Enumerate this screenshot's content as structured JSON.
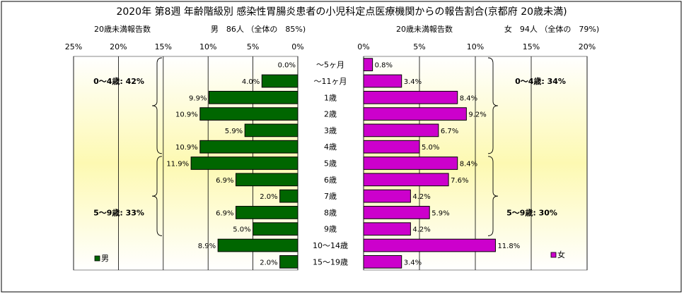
{
  "chart_data": {
    "type": "bar",
    "title": "2020年 第8週 年齢階級別 感染性胃腸炎患者の小児科定点医療機関からの報告割合(京都府 20歳未満)",
    "categories": [
      "～5ヶ月",
      "～11ヶ月",
      "1歳",
      "2歳",
      "3歳",
      "4歳",
      "5歳",
      "6歳",
      "7歳",
      "8歳",
      "9歳",
      "10～14歳",
      "15～19歳"
    ],
    "left_panel": {
      "header_left": "20歳未満報告数",
      "header_right": "男　86人 （全体の　85%)",
      "xticks": [
        "25%",
        "20%",
        "15%",
        "10%",
        "5%",
        "0%"
      ],
      "xlim": [
        0,
        25
      ],
      "legend": "男",
      "color": "#006600",
      "values": [
        0.0,
        4.0,
        9.9,
        10.9,
        5.9,
        10.9,
        11.9,
        6.9,
        2.0,
        6.9,
        5.0,
        8.9,
        2.0
      ],
      "labels": [
        "0.0%",
        "4.0%",
        "9.9%",
        "10.9%",
        "5.9%",
        "10.9%",
        "11.9%",
        "6.9%",
        "2.0%",
        "6.9%",
        "5.0%",
        "8.9%",
        "2.0%"
      ],
      "group1": "0～4歳: 42%",
      "group2": "5～9歳: 33%"
    },
    "right_panel": {
      "header_left": "20歳未満報告数",
      "header_right": "女　94人 （全体の　79%)",
      "xticks": [
        "0%",
        "5%",
        "10%",
        "15%",
        "20%"
      ],
      "xlim": [
        0,
        20
      ],
      "legend": "女",
      "color": "#cc00cc",
      "values": [
        0.8,
        3.4,
        8.4,
        9.2,
        6.7,
        5.0,
        8.4,
        7.6,
        4.2,
        5.9,
        4.2,
        11.8,
        3.4
      ],
      "labels": [
        "0.8%",
        "3.4%",
        "8.4%",
        "9.2%",
        "6.7%",
        "5.0%",
        "8.4%",
        "7.6%",
        "4.2%",
        "5.9%",
        "4.2%",
        "11.8%",
        "3.4%"
      ],
      "group1": "0～4歳: 34%",
      "group2": "5～9歳: 30%"
    }
  }
}
